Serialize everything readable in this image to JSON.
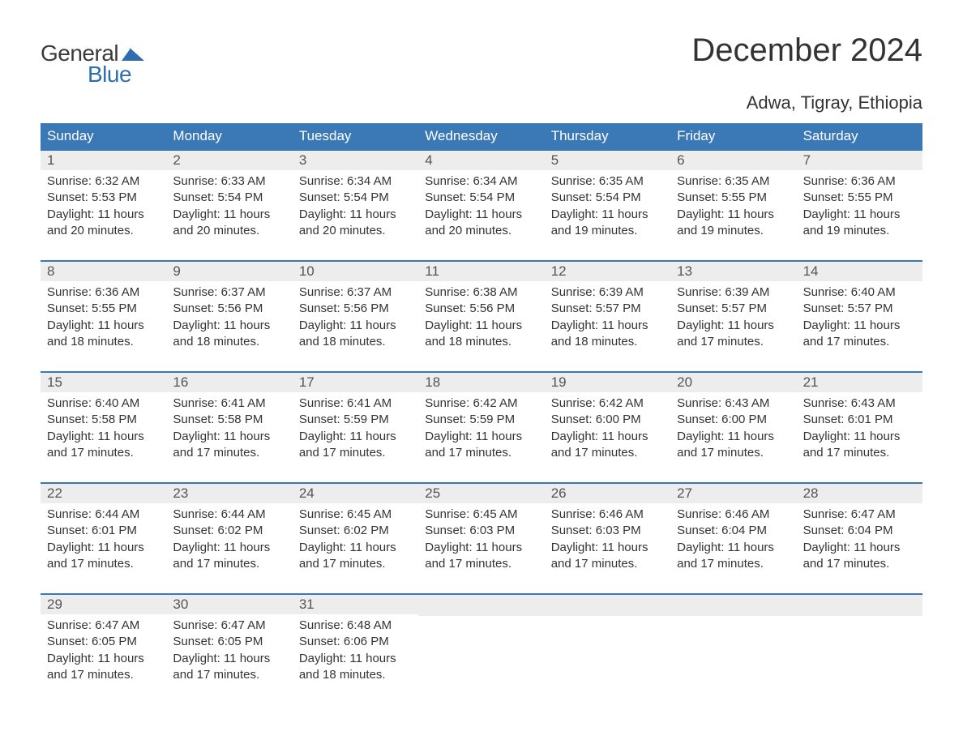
{
  "logo": {
    "general": "General",
    "blue": "Blue"
  },
  "title": "December 2024",
  "location": "Adwa, Tigray, Ethiopia",
  "colors": {
    "header_bg": "#3a78b6",
    "header_text": "#ffffff",
    "daynum_bg": "#ededed",
    "border": "#3a78b6",
    "text": "#333333",
    "logo_blue": "#2f6eae"
  },
  "day_names": [
    "Sunday",
    "Monday",
    "Tuesday",
    "Wednesday",
    "Thursday",
    "Friday",
    "Saturday"
  ],
  "weeks": [
    [
      {
        "n": "1",
        "sr": "Sunrise: 6:32 AM",
        "ss": "Sunset: 5:53 PM",
        "d1": "Daylight: 11 hours",
        "d2": "and 20 minutes."
      },
      {
        "n": "2",
        "sr": "Sunrise: 6:33 AM",
        "ss": "Sunset: 5:54 PM",
        "d1": "Daylight: 11 hours",
        "d2": "and 20 minutes."
      },
      {
        "n": "3",
        "sr": "Sunrise: 6:34 AM",
        "ss": "Sunset: 5:54 PM",
        "d1": "Daylight: 11 hours",
        "d2": "and 20 minutes."
      },
      {
        "n": "4",
        "sr": "Sunrise: 6:34 AM",
        "ss": "Sunset: 5:54 PM",
        "d1": "Daylight: 11 hours",
        "d2": "and 20 minutes."
      },
      {
        "n": "5",
        "sr": "Sunrise: 6:35 AM",
        "ss": "Sunset: 5:54 PM",
        "d1": "Daylight: 11 hours",
        "d2": "and 19 minutes."
      },
      {
        "n": "6",
        "sr": "Sunrise: 6:35 AM",
        "ss": "Sunset: 5:55 PM",
        "d1": "Daylight: 11 hours",
        "d2": "and 19 minutes."
      },
      {
        "n": "7",
        "sr": "Sunrise: 6:36 AM",
        "ss": "Sunset: 5:55 PM",
        "d1": "Daylight: 11 hours",
        "d2": "and 19 minutes."
      }
    ],
    [
      {
        "n": "8",
        "sr": "Sunrise: 6:36 AM",
        "ss": "Sunset: 5:55 PM",
        "d1": "Daylight: 11 hours",
        "d2": "and 18 minutes."
      },
      {
        "n": "9",
        "sr": "Sunrise: 6:37 AM",
        "ss": "Sunset: 5:56 PM",
        "d1": "Daylight: 11 hours",
        "d2": "and 18 minutes."
      },
      {
        "n": "10",
        "sr": "Sunrise: 6:37 AM",
        "ss": "Sunset: 5:56 PM",
        "d1": "Daylight: 11 hours",
        "d2": "and 18 minutes."
      },
      {
        "n": "11",
        "sr": "Sunrise: 6:38 AM",
        "ss": "Sunset: 5:56 PM",
        "d1": "Daylight: 11 hours",
        "d2": "and 18 minutes."
      },
      {
        "n": "12",
        "sr": "Sunrise: 6:39 AM",
        "ss": "Sunset: 5:57 PM",
        "d1": "Daylight: 11 hours",
        "d2": "and 18 minutes."
      },
      {
        "n": "13",
        "sr": "Sunrise: 6:39 AM",
        "ss": "Sunset: 5:57 PM",
        "d1": "Daylight: 11 hours",
        "d2": "and 17 minutes."
      },
      {
        "n": "14",
        "sr": "Sunrise: 6:40 AM",
        "ss": "Sunset: 5:57 PM",
        "d1": "Daylight: 11 hours",
        "d2": "and 17 minutes."
      }
    ],
    [
      {
        "n": "15",
        "sr": "Sunrise: 6:40 AM",
        "ss": "Sunset: 5:58 PM",
        "d1": "Daylight: 11 hours",
        "d2": "and 17 minutes."
      },
      {
        "n": "16",
        "sr": "Sunrise: 6:41 AM",
        "ss": "Sunset: 5:58 PM",
        "d1": "Daylight: 11 hours",
        "d2": "and 17 minutes."
      },
      {
        "n": "17",
        "sr": "Sunrise: 6:41 AM",
        "ss": "Sunset: 5:59 PM",
        "d1": "Daylight: 11 hours",
        "d2": "and 17 minutes."
      },
      {
        "n": "18",
        "sr": "Sunrise: 6:42 AM",
        "ss": "Sunset: 5:59 PM",
        "d1": "Daylight: 11 hours",
        "d2": "and 17 minutes."
      },
      {
        "n": "19",
        "sr": "Sunrise: 6:42 AM",
        "ss": "Sunset: 6:00 PM",
        "d1": "Daylight: 11 hours",
        "d2": "and 17 minutes."
      },
      {
        "n": "20",
        "sr": "Sunrise: 6:43 AM",
        "ss": "Sunset: 6:00 PM",
        "d1": "Daylight: 11 hours",
        "d2": "and 17 minutes."
      },
      {
        "n": "21",
        "sr": "Sunrise: 6:43 AM",
        "ss": "Sunset: 6:01 PM",
        "d1": "Daylight: 11 hours",
        "d2": "and 17 minutes."
      }
    ],
    [
      {
        "n": "22",
        "sr": "Sunrise: 6:44 AM",
        "ss": "Sunset: 6:01 PM",
        "d1": "Daylight: 11 hours",
        "d2": "and 17 minutes."
      },
      {
        "n": "23",
        "sr": "Sunrise: 6:44 AM",
        "ss": "Sunset: 6:02 PM",
        "d1": "Daylight: 11 hours",
        "d2": "and 17 minutes."
      },
      {
        "n": "24",
        "sr": "Sunrise: 6:45 AM",
        "ss": "Sunset: 6:02 PM",
        "d1": "Daylight: 11 hours",
        "d2": "and 17 minutes."
      },
      {
        "n": "25",
        "sr": "Sunrise: 6:45 AM",
        "ss": "Sunset: 6:03 PM",
        "d1": "Daylight: 11 hours",
        "d2": "and 17 minutes."
      },
      {
        "n": "26",
        "sr": "Sunrise: 6:46 AM",
        "ss": "Sunset: 6:03 PM",
        "d1": "Daylight: 11 hours",
        "d2": "and 17 minutes."
      },
      {
        "n": "27",
        "sr": "Sunrise: 6:46 AM",
        "ss": "Sunset: 6:04 PM",
        "d1": "Daylight: 11 hours",
        "d2": "and 17 minutes."
      },
      {
        "n": "28",
        "sr": "Sunrise: 6:47 AM",
        "ss": "Sunset: 6:04 PM",
        "d1": "Daylight: 11 hours",
        "d2": "and 17 minutes."
      }
    ],
    [
      {
        "n": "29",
        "sr": "Sunrise: 6:47 AM",
        "ss": "Sunset: 6:05 PM",
        "d1": "Daylight: 11 hours",
        "d2": "and 17 minutes."
      },
      {
        "n": "30",
        "sr": "Sunrise: 6:47 AM",
        "ss": "Sunset: 6:05 PM",
        "d1": "Daylight: 11 hours",
        "d2": "and 17 minutes."
      },
      {
        "n": "31",
        "sr": "Sunrise: 6:48 AM",
        "ss": "Sunset: 6:06 PM",
        "d1": "Daylight: 11 hours",
        "d2": "and 18 minutes."
      },
      null,
      null,
      null,
      null
    ]
  ]
}
